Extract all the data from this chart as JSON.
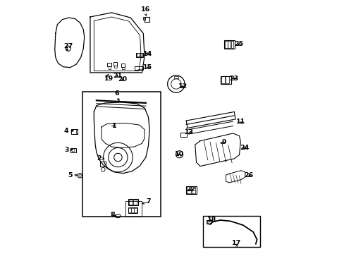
{
  "background_color": "#ffffff",
  "figsize": [
    4.89,
    3.6
  ],
  "dpi": 100,
  "parts_labels": [
    1,
    2,
    3,
    4,
    5,
    6,
    7,
    8,
    9,
    10,
    11,
    12,
    13,
    14,
    15,
    16,
    17,
    18,
    19,
    20,
    21,
    22,
    23,
    24,
    25,
    26,
    27
  ],
  "label_positions": {
    "1": [
      0.255,
      0.495,
      0.28,
      0.495,
      "left"
    ],
    "2": [
      0.24,
      0.625,
      0.22,
      0.625,
      "left"
    ],
    "3": [
      0.115,
      0.59,
      0.09,
      0.59,
      "left"
    ],
    "4": [
      0.12,
      0.515,
      0.09,
      0.515,
      "left"
    ],
    "5": [
      0.135,
      0.69,
      0.105,
      0.69,
      "left"
    ],
    "6": [
      0.295,
      0.405,
      0.28,
      0.38,
      "center"
    ],
    "7": [
      0.37,
      0.805,
      0.415,
      0.795,
      "left"
    ],
    "8": [
      0.29,
      0.855,
      0.255,
      0.848,
      "right"
    ],
    "9": [
      0.68,
      0.565,
      0.715,
      0.56,
      "left"
    ],
    "10": [
      0.54,
      0.61,
      0.51,
      0.608,
      "right"
    ],
    "11": [
      0.755,
      0.485,
      0.79,
      0.48,
      "left"
    ],
    "12": [
      0.525,
      0.34,
      0.56,
      0.34,
      "left"
    ],
    "13": [
      0.555,
      0.525,
      0.585,
      0.52,
      "left"
    ],
    "14": [
      0.385,
      0.21,
      0.42,
      0.21,
      "left"
    ],
    "15": [
      0.39,
      0.265,
      0.42,
      0.265,
      "left"
    ],
    "16": [
      0.4,
      0.07,
      0.393,
      0.048,
      "center"
    ],
    "17": [
      0.755,
      0.955,
      0.755,
      0.972,
      "center"
    ],
    "18": [
      0.665,
      0.87,
      0.638,
      0.868,
      "right"
    ],
    "19": [
      0.255,
      0.285,
      0.23,
      0.31,
      "right"
    ],
    "20": [
      0.305,
      0.3,
      0.302,
      0.325,
      "center"
    ],
    "21": [
      0.283,
      0.285,
      0.283,
      0.31,
      "center"
    ],
    "22": [
      0.585,
      0.75,
      0.555,
      0.748,
      "right"
    ],
    "23": [
      0.73,
      0.31,
      0.763,
      0.308,
      "left"
    ],
    "24": [
      0.77,
      0.585,
      0.805,
      0.582,
      "left"
    ],
    "25": [
      0.748,
      0.175,
      0.782,
      0.172,
      "left"
    ],
    "26": [
      0.79,
      0.695,
      0.822,
      0.692,
      "left"
    ],
    "27": [
      0.095,
      0.205,
      0.07,
      0.18,
      "right"
    ]
  }
}
